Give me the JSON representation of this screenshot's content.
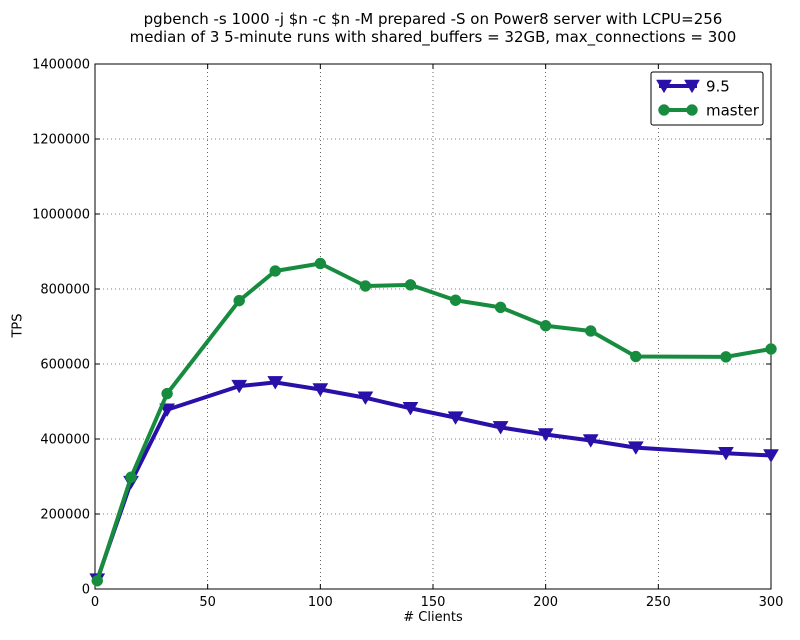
{
  "chart_data": {
    "type": "line",
    "title_lines": [
      "pgbench -s 1000 -j $n -c $n -M prepared -S on Power8 server with LCPU=256",
      "median of 3 5-minute runs with shared_buffers = 32GB, max_connections = 300"
    ],
    "xlabel": "# Clients",
    "ylabel": "TPS",
    "xlim": [
      0,
      300
    ],
    "ylim": [
      0,
      1400000
    ],
    "xticks": [
      0,
      50,
      100,
      150,
      200,
      250,
      300
    ],
    "yticks": [
      0,
      200000,
      400000,
      600000,
      800000,
      1000000,
      1200000,
      1400000
    ],
    "grid": true,
    "legend_position": "top-right",
    "series": [
      {
        "name": "9.5",
        "color": "#2a10a8",
        "marker": "triangle-down",
        "x": [
          1,
          16,
          32,
          64,
          80,
          100,
          120,
          140,
          160,
          180,
          200,
          220,
          240,
          280,
          300
        ],
        "y": [
          25000,
          285000,
          478000,
          541000,
          551000,
          532000,
          510000,
          482000,
          457000,
          431000,
          412000,
          396000,
          377000,
          362000,
          356000
        ]
      },
      {
        "name": "master",
        "color": "#178c3f",
        "marker": "circle",
        "x": [
          1,
          16,
          32,
          64,
          80,
          100,
          120,
          140,
          160,
          180,
          200,
          220,
          240,
          280,
          300
        ],
        "y": [
          22000,
          298000,
          521000,
          769000,
          848000,
          868000,
          808000,
          811000,
          770000,
          751000,
          702000,
          688000,
          620000,
          619000,
          640000
        ]
      }
    ]
  }
}
